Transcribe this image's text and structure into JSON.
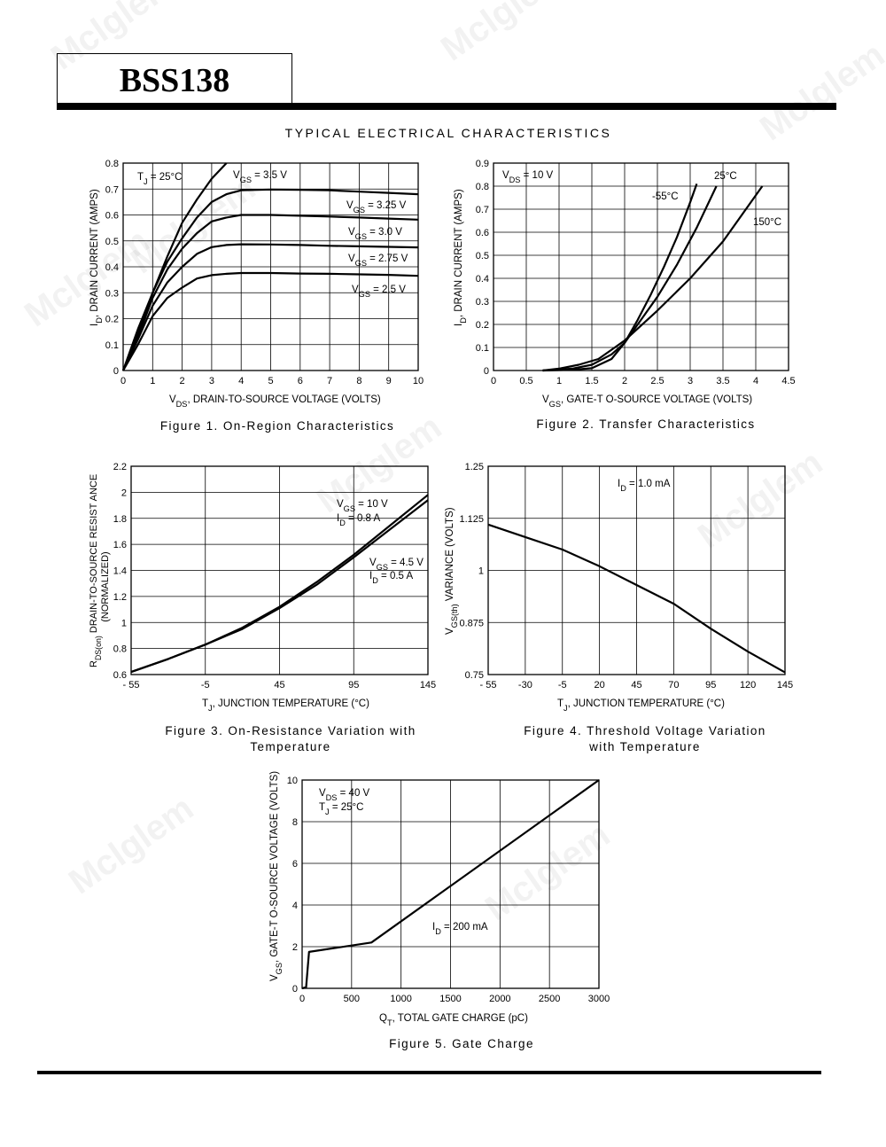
{
  "header": {
    "part_number": "BSS138",
    "section_title": "TYPICAL ELECTRICAL CHARACTERISTICS"
  },
  "watermark": "Mclglem",
  "figures": [
    {
      "caption": "Figure 1. On-Region Characteristics"
    },
    {
      "caption": "Figure 2. Transfer Characteristics"
    },
    {
      "caption": "Figure 3. On-Resistance Variation with Temperature"
    },
    {
      "caption": "Figure 4. Threshold Voltage Variation with Temperature"
    },
    {
      "caption": "Figure 5. Gate Charge"
    }
  ],
  "chart_data": [
    {
      "type": "line",
      "xlabel": "VDS, DRAIN-TO-SOURCE VOLTAGE (VOLTS)",
      "ylabel": "ID, DRAIN CURRENT (AMPS)",
      "xlim": [
        0,
        10
      ],
      "ylim": [
        0,
        0.8
      ],
      "xticks": [
        0,
        1,
        2,
        3,
        4,
        5,
        6,
        7,
        8,
        9,
        10
      ],
      "yticks": [
        0,
        0.1,
        0.2,
        0.3,
        0.4,
        0.5,
        0.6,
        0.7,
        0.8
      ],
      "grid": true,
      "annotations": [
        "TJ = 25°C"
      ],
      "series": [
        {
          "name": "VGS = 3.5 V",
          "x": [
            0,
            0.5,
            1,
            1.5,
            2,
            2.5,
            3,
            3.5
          ],
          "y": [
            0,
            0.16,
            0.3,
            0.44,
            0.57,
            0.66,
            0.74,
            0.8
          ]
        },
        {
          "name": "VGS = 3.25 V",
          "x": [
            0,
            0.5,
            1,
            1.5,
            2,
            2.5,
            3,
            3.5,
            4,
            5,
            6,
            7,
            8,
            9,
            10
          ],
          "y": [
            0,
            0.14,
            0.3,
            0.42,
            0.51,
            0.59,
            0.65,
            0.68,
            0.695,
            0.698,
            0.697,
            0.695,
            0.69,
            0.685,
            0.68
          ]
        },
        {
          "name": "VGS = 3.0 V",
          "x": [
            0,
            0.5,
            1,
            1.5,
            2,
            2.5,
            3,
            3.5,
            4,
            5,
            6,
            7,
            8,
            9,
            10
          ],
          "y": [
            0,
            0.13,
            0.28,
            0.39,
            0.47,
            0.53,
            0.575,
            0.59,
            0.6,
            0.6,
            0.597,
            0.594,
            0.59,
            0.586,
            0.582
          ]
        },
        {
          "name": "VGS = 2.75 V",
          "x": [
            0,
            0.5,
            1,
            1.5,
            2,
            2.5,
            3,
            3.5,
            4,
            5,
            6,
            7,
            8,
            9,
            10
          ],
          "y": [
            0,
            0.12,
            0.25,
            0.34,
            0.4,
            0.45,
            0.476,
            0.484,
            0.487,
            0.486,
            0.484,
            0.481,
            0.479,
            0.477,
            0.475
          ]
        },
        {
          "name": "VGS = 2.5 V",
          "x": [
            0,
            0.5,
            1,
            1.5,
            2,
            2.5,
            3,
            3.5,
            4,
            5,
            6,
            7,
            8,
            9,
            10
          ],
          "y": [
            0,
            0.1,
            0.21,
            0.28,
            0.32,
            0.355,
            0.368,
            0.373,
            0.376,
            0.376,
            0.374,
            0.373,
            0.371,
            0.369,
            0.365
          ]
        }
      ]
    },
    {
      "type": "line",
      "xlabel": "VGS, GATE-TO-SOURCE VOLTAGE (VOLTS)",
      "ylabel": "ID, DRAIN CURRENT (AMPS)",
      "xlim": [
        0,
        4.5
      ],
      "ylim": [
        0,
        0.9
      ],
      "xticks": [
        0,
        0.5,
        1,
        1.5,
        2,
        2.5,
        3,
        3.5,
        4,
        4.5
      ],
      "yticks": [
        0,
        0.1,
        0.2,
        0.3,
        0.4,
        0.5,
        0.6,
        0.7,
        0.8,
        0.9
      ],
      "grid": true,
      "annotations": [
        "VDS = 10 V"
      ],
      "series": [
        {
          "name": "-55°C",
          "x": [
            0.75,
            1.2,
            1.5,
            1.8,
            2,
            2.2,
            2.4,
            2.6,
            2.8,
            3.0,
            3.1
          ],
          "y": [
            0,
            0.003,
            0.01,
            0.05,
            0.12,
            0.22,
            0.33,
            0.45,
            0.58,
            0.73,
            0.81
          ]
        },
        {
          "name": "25°C",
          "x": [
            0.75,
            1.2,
            1.5,
            1.8,
            2,
            2.2,
            2.5,
            2.8,
            3.1,
            3.4
          ],
          "y": [
            0,
            0.008,
            0.025,
            0.07,
            0.12,
            0.2,
            0.32,
            0.46,
            0.62,
            0.8
          ]
        },
        {
          "name": "150°C",
          "x": [
            0.75,
            1.0,
            1.3,
            1.6,
            1.8,
            2.0,
            2.5,
            3.0,
            3.5,
            4.1
          ],
          "y": [
            0,
            0.008,
            0.025,
            0.05,
            0.09,
            0.13,
            0.26,
            0.4,
            0.56,
            0.8
          ]
        }
      ]
    },
    {
      "type": "line",
      "xlabel": "TJ, JUNCTION TEMPERATURE (°C)",
      "ylabel": "RDS(on) DRAIN-TO-SOURCE RESISTANCE (NORMALIZED)",
      "xlim": [
        -55,
        145
      ],
      "ylim": [
        0.6,
        2.2
      ],
      "xticks": [
        -55,
        -5,
        45,
        95,
        145
      ],
      "yticks": [
        0.6,
        0.8,
        1,
        1.2,
        1.4,
        1.6,
        1.8,
        2,
        2.2
      ],
      "grid": true,
      "series": [
        {
          "name": "VGS = 10 V, ID = 0.8 A",
          "x": [
            -55,
            -30,
            -5,
            20,
            45,
            70,
            95,
            120,
            145
          ],
          "y": [
            0.62,
            0.72,
            0.83,
            0.96,
            1.12,
            1.31,
            1.52,
            1.75,
            1.98
          ]
        },
        {
          "name": "VGS = 4.5 V, ID = 0.5 A",
          "x": [
            -55,
            -30,
            -5,
            20,
            45,
            70,
            95,
            120,
            145
          ],
          "y": [
            0.62,
            0.72,
            0.83,
            0.95,
            1.11,
            1.29,
            1.5,
            1.72,
            1.94
          ]
        }
      ]
    },
    {
      "type": "line",
      "xlabel": "TJ, JUNCTION TEMPERATURE (°C)",
      "ylabel": "VGS(th) VARIANCE (VOLTS)",
      "xlim": [
        -55,
        145
      ],
      "ylim": [
        0.75,
        1.25
      ],
      "xticks": [
        -55,
        -30,
        -5,
        20,
        45,
        70,
        95,
        120,
        145
      ],
      "yticks": [
        0.75,
        0.875,
        1,
        1.125,
        1.25
      ],
      "grid": true,
      "annotations": [
        "ID = 1.0 mA"
      ],
      "series": [
        {
          "name": "ID = 1.0 mA",
          "x": [
            -55,
            -30,
            -5,
            20,
            45,
            70,
            95,
            120,
            145
          ],
          "y": [
            1.11,
            1.08,
            1.05,
            1.01,
            0.965,
            0.92,
            0.86,
            0.805,
            0.755
          ]
        }
      ]
    },
    {
      "type": "line",
      "xlabel": "QT, TOTAL GATE CHARGE (pC)",
      "ylabel": "VGS, GATE-TO-SOURCE VOLTAGE (VOLTS)",
      "xlim": [
        0,
        3000
      ],
      "ylim": [
        0,
        10
      ],
      "xticks": [
        0,
        500,
        1000,
        1500,
        2000,
        2500,
        3000
      ],
      "yticks": [
        0,
        2,
        4,
        6,
        8,
        10
      ],
      "grid": true,
      "annotations": [
        "VDS = 40 V",
        "TJ = 25°C",
        "ID = 200 mA"
      ],
      "series": [
        {
          "name": "ID = 200 mA",
          "x": [
            0,
            40,
            70,
            700,
            3000
          ],
          "y": [
            0,
            0.05,
            1.75,
            2.2,
            10
          ]
        }
      ]
    }
  ]
}
